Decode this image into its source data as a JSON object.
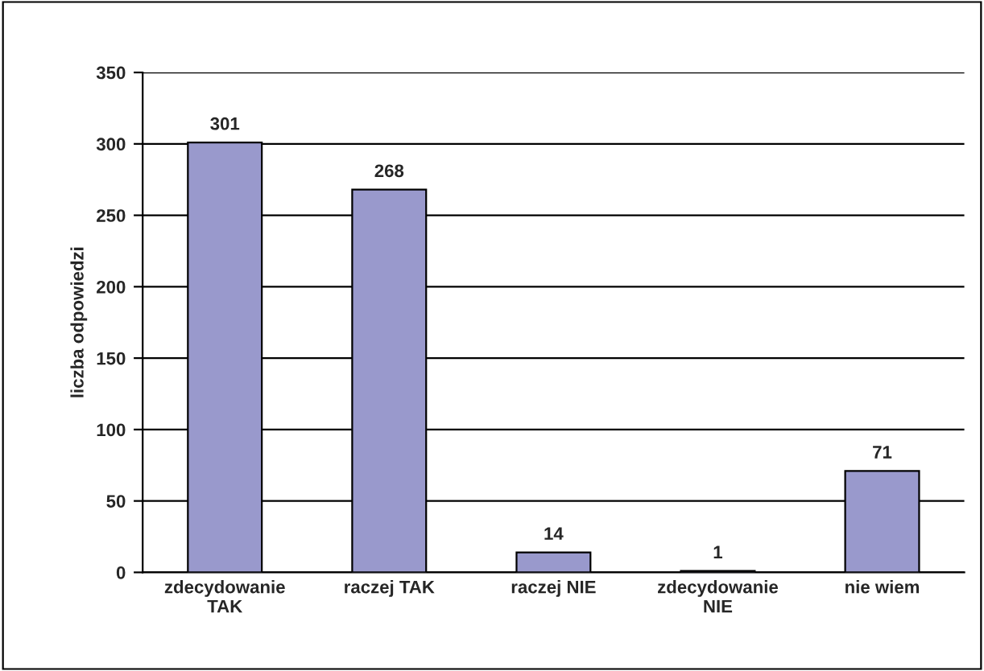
{
  "chart_data": {
    "type": "bar",
    "ylabel": "liczba odpowiedzi",
    "categories": [
      "zdecydowanie\nTAK",
      "raczej TAK",
      "raczej NIE",
      "zdecydowanie\nNIE",
      "nie wiem"
    ],
    "values": [
      301,
      268,
      14,
      1,
      71
    ],
    "color": "#9999cc",
    "ylim": [
      0,
      350
    ],
    "yticks": [
      0,
      50,
      100,
      150,
      200,
      250,
      300,
      350
    ],
    "grid": "y",
    "data_labels": true
  }
}
